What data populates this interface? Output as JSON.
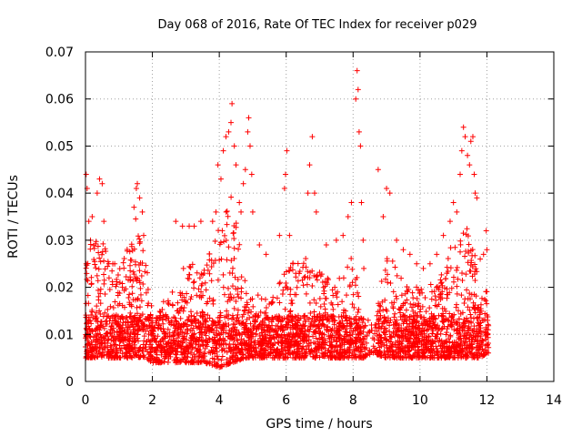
{
  "chart_data": {
    "type": "scatter",
    "title": "Day 068 of 2016, Rate Of TEC Index for receiver p029",
    "xlabel": "GPS time / hours",
    "ylabel": "ROTI / TECUs",
    "xlim": [
      0,
      14
    ],
    "ylim": [
      0,
      0.07
    ],
    "x_ticks": [
      0,
      2,
      4,
      6,
      8,
      10,
      12,
      14
    ],
    "x_tick_labels": [
      "0",
      "2",
      "4",
      "6",
      "8",
      "10",
      "12",
      "14"
    ],
    "y_ticks": [
      0,
      0.01,
      0.02,
      0.03,
      0.04,
      0.05,
      0.06,
      0.07
    ],
    "y_tick_labels": [
      "0",
      "0.01",
      "0.02",
      "0.03",
      "0.04",
      "0.05",
      "0.06",
      "0.07"
    ],
    "grid": true,
    "marker": "+",
    "color": "#ff0000",
    "sampling_note": "Dense cloud approximated by a deterministic sample of points following the visible envelope.",
    "density_envelope": [
      {
        "x": 0.0,
        "lo": 0.005,
        "hi": 0.028
      },
      {
        "x": 0.25,
        "lo": 0.005,
        "hi": 0.032
      },
      {
        "x": 0.5,
        "lo": 0.005,
        "hi": 0.03
      },
      {
        "x": 1.0,
        "lo": 0.005,
        "hi": 0.024
      },
      {
        "x": 1.5,
        "lo": 0.005,
        "hi": 0.036
      },
      {
        "x": 1.8,
        "lo": 0.005,
        "hi": 0.026
      },
      {
        "x": 2.0,
        "lo": 0.004,
        "hi": 0.015
      },
      {
        "x": 2.5,
        "lo": 0.004,
        "hi": 0.018
      },
      {
        "x": 3.0,
        "lo": 0.004,
        "hi": 0.026
      },
      {
        "x": 3.5,
        "lo": 0.004,
        "hi": 0.024
      },
      {
        "x": 4.0,
        "lo": 0.003,
        "hi": 0.034
      },
      {
        "x": 4.4,
        "lo": 0.004,
        "hi": 0.04
      },
      {
        "x": 4.8,
        "lo": 0.005,
        "hi": 0.02
      },
      {
        "x": 5.5,
        "lo": 0.005,
        "hi": 0.017
      },
      {
        "x": 6.0,
        "lo": 0.005,
        "hi": 0.024
      },
      {
        "x": 6.5,
        "lo": 0.005,
        "hi": 0.027
      },
      {
        "x": 7.0,
        "lo": 0.005,
        "hi": 0.024
      },
      {
        "x": 7.5,
        "lo": 0.005,
        "hi": 0.022
      },
      {
        "x": 8.0,
        "lo": 0.005,
        "hi": 0.028
      },
      {
        "x": 8.3,
        "lo": 0.005,
        "hi": 0.014
      },
      {
        "x": 8.6,
        "lo": 0.006,
        "hi": 0.012
      },
      {
        "x": 9.0,
        "lo": 0.005,
        "hi": 0.028
      },
      {
        "x": 9.5,
        "lo": 0.005,
        "hi": 0.022
      },
      {
        "x": 10.0,
        "lo": 0.005,
        "hi": 0.02
      },
      {
        "x": 10.5,
        "lo": 0.005,
        "hi": 0.022
      },
      {
        "x": 11.0,
        "lo": 0.005,
        "hi": 0.03
      },
      {
        "x": 11.4,
        "lo": 0.005,
        "hi": 0.034
      },
      {
        "x": 11.8,
        "lo": 0.005,
        "hi": 0.022
      },
      {
        "x": 12.0,
        "lo": 0.006,
        "hi": 0.02
      }
    ],
    "points": [
      [
        0.02,
        0.044
      ],
      [
        0.05,
        0.041
      ],
      [
        0.1,
        0.034
      ],
      [
        0.15,
        0.03
      ],
      [
        0.2,
        0.035
      ],
      [
        0.35,
        0.04
      ],
      [
        0.42,
        0.043
      ],
      [
        0.5,
        0.042
      ],
      [
        0.55,
        0.034
      ],
      [
        1.45,
        0.037
      ],
      [
        1.52,
        0.041
      ],
      [
        1.55,
        0.042
      ],
      [
        1.62,
        0.039
      ],
      [
        1.7,
        0.036
      ],
      [
        1.74,
        0.031
      ],
      [
        2.7,
        0.034
      ],
      [
        2.9,
        0.033
      ],
      [
        3.1,
        0.033
      ],
      [
        3.25,
        0.033
      ],
      [
        3.45,
        0.034
      ],
      [
        3.8,
        0.034
      ],
      [
        3.9,
        0.036
      ],
      [
        3.96,
        0.046
      ],
      [
        4.05,
        0.043
      ],
      [
        4.12,
        0.049
      ],
      [
        4.2,
        0.052
      ],
      [
        4.28,
        0.053
      ],
      [
        4.35,
        0.055
      ],
      [
        4.38,
        0.059
      ],
      [
        4.45,
        0.05
      ],
      [
        4.5,
        0.046
      ],
      [
        4.6,
        0.038
      ],
      [
        4.65,
        0.036
      ],
      [
        4.72,
        0.042
      ],
      [
        4.78,
        0.045
      ],
      [
        4.85,
        0.053
      ],
      [
        4.88,
        0.056
      ],
      [
        4.92,
        0.05
      ],
      [
        4.97,
        0.044
      ],
      [
        5.0,
        0.036
      ],
      [
        5.2,
        0.029
      ],
      [
        5.4,
        0.027
      ],
      [
        5.8,
        0.031
      ],
      [
        5.95,
        0.041
      ],
      [
        5.98,
        0.044
      ],
      [
        6.02,
        0.049
      ],
      [
        6.1,
        0.031
      ],
      [
        6.65,
        0.04
      ],
      [
        6.7,
        0.046
      ],
      [
        6.78,
        0.052
      ],
      [
        6.85,
        0.04
      ],
      [
        6.9,
        0.036
      ],
      [
        7.2,
        0.029
      ],
      [
        7.5,
        0.03
      ],
      [
        7.7,
        0.031
      ],
      [
        7.85,
        0.035
      ],
      [
        7.95,
        0.038
      ],
      [
        8.08,
        0.06
      ],
      [
        8.12,
        0.066
      ],
      [
        8.15,
        0.062
      ],
      [
        8.18,
        0.053
      ],
      [
        8.22,
        0.05
      ],
      [
        8.25,
        0.038
      ],
      [
        8.3,
        0.03
      ],
      [
        8.32,
        0.024
      ],
      [
        8.45,
        0.013
      ],
      [
        8.55,
        0.012
      ],
      [
        8.65,
        0.012
      ],
      [
        8.75,
        0.045
      ],
      [
        8.9,
        0.035
      ],
      [
        9.0,
        0.041
      ],
      [
        9.1,
        0.04
      ],
      [
        9.3,
        0.03
      ],
      [
        9.5,
        0.028
      ],
      [
        9.7,
        0.027
      ],
      [
        9.9,
        0.025
      ],
      [
        10.1,
        0.024
      ],
      [
        10.3,
        0.025
      ],
      [
        10.5,
        0.027
      ],
      [
        10.7,
        0.031
      ],
      [
        10.9,
        0.034
      ],
      [
        11.0,
        0.038
      ],
      [
        11.1,
        0.036
      ],
      [
        11.2,
        0.044
      ],
      [
        11.25,
        0.049
      ],
      [
        11.3,
        0.054
      ],
      [
        11.35,
        0.052
      ],
      [
        11.42,
        0.048
      ],
      [
        11.48,
        0.046
      ],
      [
        11.52,
        0.051
      ],
      [
        11.58,
        0.052
      ],
      [
        11.62,
        0.044
      ],
      [
        11.65,
        0.04
      ],
      [
        11.7,
        0.039
      ],
      [
        11.8,
        0.026
      ],
      [
        11.9,
        0.027
      ],
      [
        11.98,
        0.032
      ],
      [
        12.0,
        0.028
      ]
    ]
  }
}
